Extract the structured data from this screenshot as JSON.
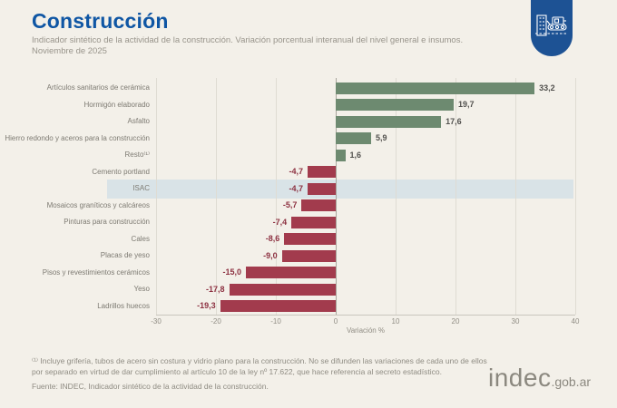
{
  "page": {
    "title": "Construcción",
    "subtitle": "Indicador sintético de la actividad de la construcción. Variación porcentual interanual del nivel general e insumos.",
    "period": "Noviembre de 2025",
    "background_color": "#f3f0e9",
    "title_color": "#0f56a4"
  },
  "header_badge": {
    "icon": "construction-machinery-icon",
    "color": "#1d5294"
  },
  "chart_data": {
    "type": "bar",
    "orientation": "horizontal",
    "title": "Construcción",
    "xlabel": "Variación %",
    "xlim": [
      -30,
      40
    ],
    "xticks": [
      -30,
      -20,
      -10,
      0,
      10,
      20,
      30,
      40
    ],
    "grid": true,
    "categories": [
      "Artículos sanitarios de cerámica",
      "Hormigón elaborado",
      "Asfalto",
      "Hierro redondo y aceros para la construcción",
      "Resto⁽¹⁾",
      "Cemento portland",
      "ISAC",
      "Mosaicos graníticos y calcáreos",
      "Pinturas para construcción",
      "Cales",
      "Placas de yeso",
      "Pisos y revestimientos cerámicos",
      "Yeso",
      "Ladrillos huecos"
    ],
    "values": [
      33.2,
      19.7,
      17.6,
      5.9,
      1.6,
      -4.7,
      -4.7,
      -5.7,
      -7.4,
      -8.6,
      -9.0,
      -15.0,
      -17.8,
      -19.3
    ],
    "value_labels": [
      "33,2",
      "19,7",
      "17,6",
      "5,9",
      "1,6",
      "-4,7",
      "-4,7",
      "-5,7",
      "-7,4",
      "-8,6",
      "-9,0",
      "-15,0",
      "-17,8",
      "-19,3"
    ],
    "highlighted_category": "ISAC",
    "positive_color": "#6d8a70",
    "negative_color": "#a23b4d",
    "highlight_band_color": "#d9e3e7"
  },
  "footer": {
    "footnote": "⁽¹⁾ Incluye grifería, tubos de acero sin costura y vidrio plano para la construcción. No se difunden las variaciones de cada uno de ellos por separado en virtud de dar cumplimiento al artículo 10 de la ley  nº 17.622, que hace referencia al secreto estadístico.",
    "source": "Fuente: INDEC, Indicador sintético de la actividad de la construcción.",
    "logo_text": "indec",
    "logo_suffix": ".gob.ar"
  }
}
